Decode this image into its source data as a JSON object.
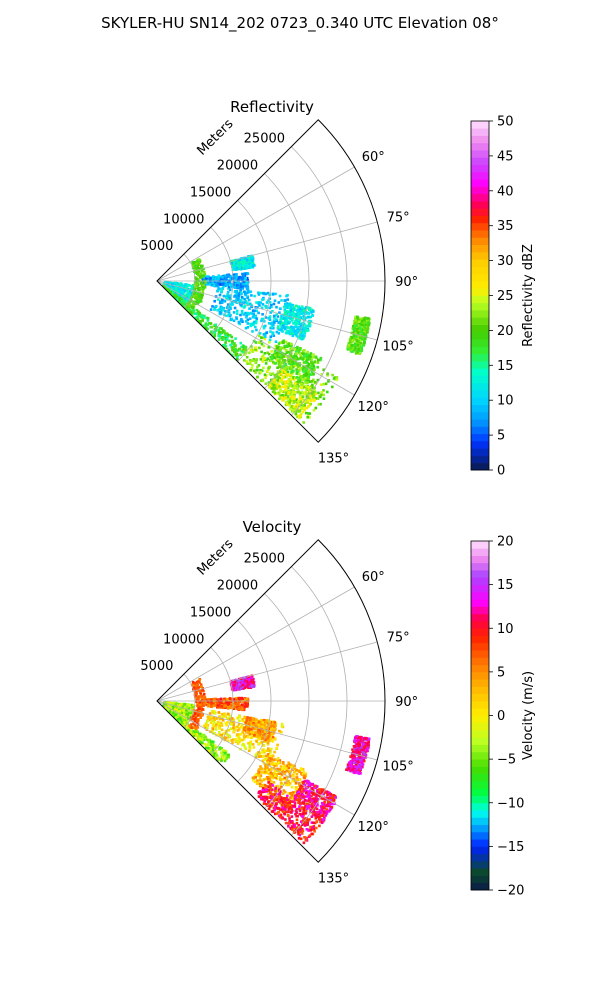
{
  "figure": {
    "suptitle": "SKYLER-HU  SN14_202  0723_0.340 UTC Elevation 08°"
  },
  "chart_data": [
    {
      "type": "polar-sector",
      "title": "Reflectivity",
      "radial_label": "Meters",
      "radial_ticks": [
        5000,
        10000,
        15000,
        20000,
        25000
      ],
      "radial_tick_labels": [
        "5000",
        "10000",
        "15000",
        "20000",
        "25000"
      ],
      "rmax": 30000,
      "azimuth_range_deg": [
        45,
        135
      ],
      "azimuth_ticks": [
        60,
        75,
        90,
        105,
        120,
        135
      ],
      "azimuth_tick_labels": [
        "60°",
        "75°",
        "90°",
        "105°",
        "120°",
        "135°"
      ],
      "grid": true,
      "colorbar": {
        "label": "Reflectivity dBZ",
        "range": [
          0,
          50
        ],
        "ticks": [
          0,
          5,
          10,
          15,
          20,
          25,
          30,
          35,
          40,
          45,
          50
        ],
        "tick_labels": [
          "0",
          "5",
          "10",
          "15",
          "20",
          "25",
          "30",
          "35",
          "40",
          "45",
          "50"
        ],
        "stops": [
          [
            0,
            "#0a1a4a"
          ],
          [
            4,
            "#0033ff"
          ],
          [
            7,
            "#0099ff"
          ],
          [
            10,
            "#00d4ff"
          ],
          [
            14,
            "#00ffcc"
          ],
          [
            17,
            "#33ee33"
          ],
          [
            20,
            "#44cc00"
          ],
          [
            24,
            "#bbff22"
          ],
          [
            26,
            "#ffee00"
          ],
          [
            30,
            "#ffcc00"
          ],
          [
            33,
            "#ff8800"
          ],
          [
            36,
            "#ff2200"
          ],
          [
            38,
            "#ff0055"
          ],
          [
            41,
            "#ff00ff"
          ],
          [
            44,
            "#cc44ff"
          ],
          [
            47,
            "#ee88ee"
          ],
          [
            50,
            "#ffe0ff"
          ]
        ]
      },
      "echo_regions": [
        {
          "az": [
            96,
            134
          ],
          "r": [
            1000,
            5000
          ],
          "value": 12
        },
        {
          "az": [
            126,
            136
          ],
          "r": [
            1000,
            15000
          ],
          "value": 18
        },
        {
          "az": [
            118,
            134
          ],
          "r": [
            15000,
            27000
          ],
          "value": 22
        },
        {
          "az": [
            125,
            134
          ],
          "r": [
            20000,
            26000
          ],
          "value": 24
        },
        {
          "az": [
            96,
            118
          ],
          "r": [
            8000,
            18000
          ],
          "value": 10
        },
        {
          "az": [
            100,
            112
          ],
          "r": [
            17000,
            21000
          ],
          "value": 12
        },
        {
          "az": [
            115,
            125
          ],
          "r": [
            18000,
            24000
          ],
          "value": 20
        },
        {
          "az": [
            100,
            110
          ],
          "r": [
            26500,
            28500
          ],
          "value": 20
        },
        {
          "az": [
            75,
            82
          ],
          "r": [
            10000,
            13000
          ],
          "value": 12
        },
        {
          "az": [
            85,
            95
          ],
          "r": [
            6000,
            12000
          ],
          "value": 8
        },
        {
          "az": [
            62,
            128
          ],
          "r": [
            5000,
            6400
          ],
          "value": 20
        }
      ]
    },
    {
      "type": "polar-sector",
      "title": "Velocity",
      "radial_label": "Meters",
      "radial_ticks": [
        5000,
        10000,
        15000,
        20000,
        25000
      ],
      "radial_tick_labels": [
        "5000",
        "10000",
        "15000",
        "20000",
        "25000"
      ],
      "rmax": 30000,
      "azimuth_range_deg": [
        45,
        135
      ],
      "azimuth_ticks": [
        60,
        75,
        90,
        105,
        120,
        135
      ],
      "azimuth_tick_labels": [
        "60°",
        "75°",
        "90°",
        "105°",
        "120°",
        "135°"
      ],
      "grid": true,
      "colorbar": {
        "label": "Velocity (m/s)",
        "range": [
          -20,
          20
        ],
        "ticks": [
          -20,
          -15,
          -10,
          -5,
          0,
          5,
          10,
          15,
          20
        ],
        "tick_labels": [
          "−20",
          "−15",
          "−10",
          "−5",
          "0",
          "5",
          "10",
          "15",
          "20"
        ],
        "stops": [
          [
            -20,
            "#0a1a4a"
          ],
          [
            -18,
            "#0a4a2a"
          ],
          [
            -15,
            "#0022ff"
          ],
          [
            -13,
            "#0099ff"
          ],
          [
            -11,
            "#00ffee"
          ],
          [
            -9,
            "#00ff44"
          ],
          [
            -6,
            "#44dd00"
          ],
          [
            -3,
            "#bbff22"
          ],
          [
            0,
            "#ffee00"
          ],
          [
            3,
            "#ffbb00"
          ],
          [
            6,
            "#ff7700"
          ],
          [
            9,
            "#ff2200"
          ],
          [
            11,
            "#ff0044"
          ],
          [
            13,
            "#ff00ff"
          ],
          [
            16,
            "#aa44ff"
          ],
          [
            18,
            "#ee88ee"
          ],
          [
            20,
            "#ffe0ff"
          ]
        ]
      },
      "echo_regions": [
        {
          "az": [
            96,
            134
          ],
          "r": [
            1000,
            5000
          ],
          "value": -3
        },
        {
          "az": [
            126,
            136
          ],
          "r": [
            1000,
            12000
          ],
          "value": -4
        },
        {
          "az": [
            100,
            120
          ],
          "r": [
            7000,
            17000
          ],
          "value": 1
        },
        {
          "az": [
            100,
            110
          ],
          "r": [
            12000,
            16000
          ],
          "value": 4
        },
        {
          "az": [
            115,
            130
          ],
          "r": [
            16000,
            22000
          ],
          "value": 3
        },
        {
          "az": [
            126,
            134
          ],
          "r": [
            18000,
            27000
          ],
          "value": 10
        },
        {
          "az": [
            118,
            126
          ],
          "r": [
            22000,
            27000
          ],
          "value": 11
        },
        {
          "az": [
            100,
            110
          ],
          "r": [
            26500,
            28500
          ],
          "value": 13
        },
        {
          "az": [
            88,
            96
          ],
          "r": [
            6000,
            12000
          ],
          "value": 7
        },
        {
          "az": [
            75,
            82
          ],
          "r": [
            10000,
            13000
          ],
          "value": 13
        },
        {
          "az": [
            62,
            128
          ],
          "r": [
            5000,
            6400
          ],
          "value": 7
        }
      ]
    }
  ]
}
